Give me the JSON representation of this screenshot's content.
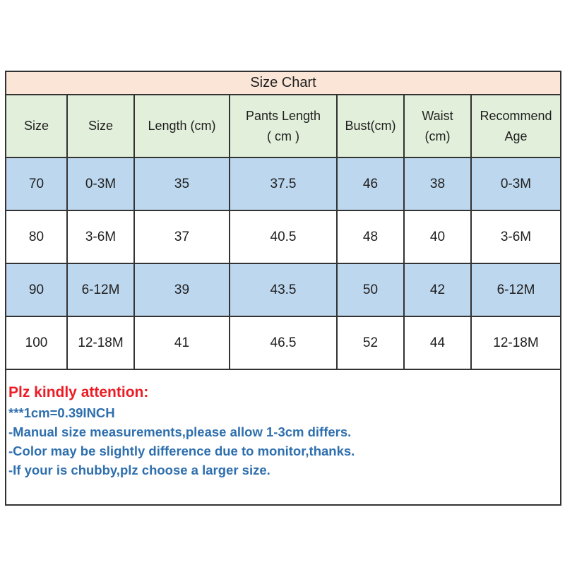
{
  "table": {
    "title": "Size Chart",
    "headers": [
      "Size",
      "Size",
      "Length (cm)",
      "Pants Length\n( cm )",
      "Bust(cm)",
      "Waist\n(cm)",
      "Recommend\nAge"
    ],
    "rows": [
      [
        "70",
        "0-3M",
        "35",
        "37.5",
        "46",
        "38",
        "0-3M"
      ],
      [
        "80",
        "3-6M",
        "37",
        "40.5",
        "48",
        "40",
        "3-6M"
      ],
      [
        "90",
        "6-12M",
        "39",
        "43.5",
        "50",
        "42",
        "6-12M"
      ],
      [
        "100",
        "12-18M",
        "41",
        "46.5",
        "52",
        "44",
        "12-18M"
      ]
    ]
  },
  "notes": {
    "heading": "Plz kindly attention:",
    "lines": [
      "***1cm=0.39INCH",
      "-Manual size measurements,please allow 1-3cm differs.",
      "-Color may be slightly difference due to monitor,thanks.",
      "-If your is chubby,plz choose a larger size."
    ]
  },
  "colors": {
    "title_bg": "#FBE5D6",
    "header_bg": "#E2EFDA",
    "row_alt_bg": "#BDD7EE",
    "row_bg": "#FFFFFF",
    "border": "#333333",
    "heading_color": "#EC1C24",
    "note_color": "#2E6FAE",
    "text": "#1F1F1F"
  }
}
